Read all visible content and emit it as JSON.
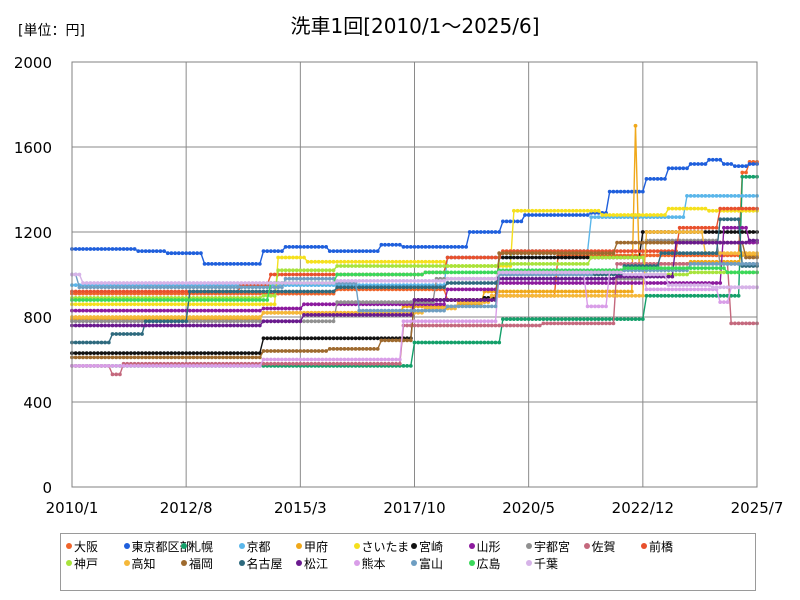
{
  "chart_data": {
    "type": "line",
    "title": "洗車1回[2010/1～2025/6]",
    "unit_label": "[単位：円]",
    "xlabel": "",
    "ylabel": "",
    "x_start": 2010.0,
    "x_end": 2025.5,
    "xlim": [
      2010.0,
      2025.5
    ],
    "ylim": [
      0,
      2000
    ],
    "yticks": [
      0,
      400,
      800,
      1200,
      1600,
      2000
    ],
    "xticks": [
      {
        "value": 2010.0,
        "label": "2010/1"
      },
      {
        "value": 2012.583,
        "label": "2012/8"
      },
      {
        "value": 2015.167,
        "label": "2015/3"
      },
      {
        "value": 2017.75,
        "label": "2017/10"
      },
      {
        "value": 2020.333,
        "label": "2020/5"
      },
      {
        "value": 2022.917,
        "label": "2022/12"
      },
      {
        "value": 2025.5,
        "label": "2025/7"
      }
    ],
    "grid": true,
    "legend_position": "bottom",
    "series": [
      {
        "name": "大阪",
        "color": "#f0642a",
        "steps": [
          [
            2010.0,
            910
          ],
          [
            2014.5,
            910
          ],
          [
            2016.0,
            930
          ],
          [
            2018.5,
            880
          ],
          [
            2019.5,
            900
          ],
          [
            2021.0,
            1090
          ],
          [
            2024.0,
            1090
          ],
          [
            2025.1,
            1480
          ],
          [
            2025.3,
            1530
          ]
        ]
      },
      {
        "name": "東京都区部",
        "color": "#1f5fdc",
        "steps": [
          [
            2010.0,
            1120
          ],
          [
            2011.5,
            1110
          ],
          [
            2012.1,
            1100
          ],
          [
            2013.0,
            1050
          ],
          [
            2014.0,
            1050
          ],
          [
            2014.3,
            1110
          ],
          [
            2014.8,
            1130
          ],
          [
            2015.8,
            1110
          ],
          [
            2017.0,
            1140
          ],
          [
            2017.5,
            1130
          ],
          [
            2019.0,
            1200
          ],
          [
            2019.7,
            1250
          ],
          [
            2020.2,
            1280
          ],
          [
            2021.7,
            1290
          ],
          [
            2022.1,
            1390
          ],
          [
            2023.0,
            1450
          ],
          [
            2023.5,
            1500
          ],
          [
            2024.0,
            1520
          ],
          [
            2024.4,
            1540
          ],
          [
            2024.7,
            1520
          ],
          [
            2025.0,
            1510
          ],
          [
            2025.3,
            1520
          ]
        ]
      },
      {
        "name": "札幌",
        "color": "#14a06a",
        "steps": [
          [
            2010.0,
            570
          ],
          [
            2016.9,
            570
          ],
          [
            2017.7,
            680
          ],
          [
            2019.7,
            790
          ],
          [
            2022.9,
            790
          ],
          [
            2023.0,
            900
          ],
          [
            2024.6,
            900
          ],
          [
            2025.1,
            1460
          ]
        ]
      },
      {
        "name": "京都",
        "color": "#5ab6ea",
        "steps": [
          [
            2010.0,
            950
          ],
          [
            2014.3,
            950
          ],
          [
            2016.5,
            950
          ],
          [
            2018.5,
            1080
          ],
          [
            2020.0,
            1110
          ],
          [
            2021.7,
            1270
          ],
          [
            2023.9,
            1370
          ]
        ]
      },
      {
        "name": "甲府",
        "color": "#f0a81a",
        "steps": [
          [
            2010.0,
            790
          ],
          [
            2013.7,
            790
          ],
          [
            2014.3,
            820
          ],
          [
            2017.5,
            850
          ],
          [
            2018.7,
            860
          ],
          [
            2019.3,
            920
          ],
          [
            2022.7,
            1700
          ],
          [
            2022.8,
            1050
          ],
          [
            2024.0,
            1060
          ],
          [
            2025.1,
            1090
          ]
        ]
      },
      {
        "name": "さいたま",
        "color": "#f5e01c",
        "steps": [
          [
            2010.0,
            860
          ],
          [
            2014.3,
            860
          ],
          [
            2014.6,
            1080
          ],
          [
            2015.3,
            1060
          ],
          [
            2018.5,
            1040
          ],
          [
            2020.0,
            1300
          ],
          [
            2022.0,
            1280
          ],
          [
            2023.5,
            1310
          ],
          [
            2024.4,
            1300
          ]
        ]
      },
      {
        "name": "宮崎",
        "color": "#111111",
        "steps": [
          [
            2010.0,
            630
          ],
          [
            2013.8,
            630
          ],
          [
            2014.3,
            700
          ],
          [
            2017.7,
            880
          ],
          [
            2019.3,
            890
          ],
          [
            2019.6,
            1080
          ],
          [
            2022.9,
            1200
          ],
          [
            2025.5,
            1200
          ]
        ]
      },
      {
        "name": "山形",
        "color": "#8c1a9e",
        "steps": [
          [
            2010.0,
            830
          ],
          [
            2014.3,
            840
          ],
          [
            2015.2,
            860
          ],
          [
            2018.5,
            930
          ],
          [
            2019.6,
            960
          ],
          [
            2024.7,
            1220
          ],
          [
            2025.3,
            1150
          ]
        ]
      },
      {
        "name": "宇都宮",
        "color": "#909090",
        "steps": [
          [
            2010.0,
            780
          ],
          [
            2014.3,
            780
          ],
          [
            2016.0,
            870
          ],
          [
            2018.2,
            980
          ],
          [
            2019.6,
            980
          ],
          [
            2023.0,
            1160
          ],
          [
            2024.6,
            1050
          ]
        ]
      },
      {
        "name": "佐賀",
        "color": "#c4687d",
        "steps": [
          [
            2010.0,
            570
          ],
          [
            2010.9,
            530
          ],
          [
            2011.1,
            580
          ],
          [
            2014.3,
            580
          ],
          [
            2014.5,
            580
          ],
          [
            2017.5,
            760
          ],
          [
            2020.6,
            770
          ],
          [
            2022.3,
            1050
          ],
          [
            2024.9,
            770
          ]
        ]
      },
      {
        "name": "前橋",
        "color": "#e8502d",
        "steps": [
          [
            2010.0,
            920
          ],
          [
            2013.8,
            950
          ],
          [
            2014.5,
            1000
          ],
          [
            2016.0,
            1000
          ],
          [
            2018.0,
            1010
          ],
          [
            2018.5,
            1080
          ],
          [
            2019.7,
            1110
          ],
          [
            2023.7,
            1220
          ],
          [
            2024.6,
            1310
          ]
        ]
      },
      {
        "name": "神戸",
        "color": "#a8e33c",
        "steps": [
          [
            2010.0,
            890
          ],
          [
            2014.3,
            900
          ],
          [
            2014.6,
            1020
          ],
          [
            2016.0,
            1040
          ],
          [
            2018.5,
            1040
          ],
          [
            2019.6,
            1050
          ],
          [
            2021.7,
            1080
          ],
          [
            2023.0,
            1000
          ],
          [
            2024.0,
            1010
          ]
        ]
      },
      {
        "name": "高知",
        "color": "#f5b83a",
        "steps": [
          [
            2010.0,
            800
          ],
          [
            2014.3,
            820
          ],
          [
            2016.0,
            820
          ],
          [
            2018.0,
            840
          ],
          [
            2018.7,
            870
          ],
          [
            2019.5,
            900
          ],
          [
            2023.0,
            1200
          ],
          [
            2024.3,
            1100
          ]
        ]
      },
      {
        "name": "福岡",
        "color": "#9e6a2e",
        "steps": [
          [
            2010.0,
            610
          ],
          [
            2014.3,
            640
          ],
          [
            2015.8,
            650
          ],
          [
            2017.0,
            690
          ],
          [
            2017.7,
            880
          ],
          [
            2019.6,
            1100
          ],
          [
            2022.3,
            1150
          ],
          [
            2025.2,
            1080
          ]
        ]
      },
      {
        "name": "名古屋",
        "color": "#2e6a7e",
        "steps": [
          [
            2010.0,
            680
          ],
          [
            2010.9,
            720
          ],
          [
            2011.6,
            780
          ],
          [
            2012.6,
            920
          ],
          [
            2014.3,
            920
          ],
          [
            2016.0,
            940
          ],
          [
            2018.5,
            960
          ],
          [
            2019.6,
            1000
          ],
          [
            2022.5,
            1040
          ],
          [
            2023.3,
            1100
          ],
          [
            2024.6,
            1260
          ],
          [
            2025.1,
            1040
          ]
        ]
      },
      {
        "name": "松江",
        "color": "#6a1a8e",
        "steps": [
          [
            2010.0,
            760
          ],
          [
            2014.3,
            780
          ],
          [
            2015.2,
            810
          ],
          [
            2017.7,
            880
          ],
          [
            2019.6,
            980
          ],
          [
            2022.3,
            990
          ],
          [
            2023.6,
            1150
          ],
          [
            2025.3,
            1160
          ]
        ]
      },
      {
        "name": "熊本",
        "color": "#d99ee8",
        "steps": [
          [
            2010.0,
            570
          ],
          [
            2014.3,
            600
          ],
          [
            2016.0,
            600
          ],
          [
            2017.5,
            780
          ],
          [
            2019.6,
            1000
          ],
          [
            2021.6,
            850
          ],
          [
            2022.1,
            1020
          ],
          [
            2023.0,
            930
          ],
          [
            2024.6,
            870
          ],
          [
            2024.9,
            940
          ]
        ]
      },
      {
        "name": "富山",
        "color": "#6e9ec2",
        "steps": [
          [
            2010.0,
            1000
          ],
          [
            2010.1,
            940
          ],
          [
            2014.3,
            940
          ],
          [
            2014.8,
            980
          ],
          [
            2016.0,
            960
          ],
          [
            2016.5,
            830
          ],
          [
            2018.5,
            850
          ],
          [
            2019.6,
            1000
          ],
          [
            2021.8,
            1020
          ],
          [
            2024.0,
            1050
          ]
        ]
      },
      {
        "name": "広島",
        "color": "#3ad85a",
        "steps": [
          [
            2010.0,
            880
          ],
          [
            2014.3,
            880
          ],
          [
            2014.5,
            960
          ],
          [
            2016.0,
            1000
          ],
          [
            2018.0,
            1010
          ],
          [
            2019.6,
            1020
          ],
          [
            2022.5,
            1030
          ],
          [
            2024.8,
            1010
          ]
        ]
      },
      {
        "name": "千葉",
        "color": "#d6b3e8",
        "steps": [
          [
            2010.0,
            1000
          ],
          [
            2010.2,
            960
          ],
          [
            2014.3,
            960
          ],
          [
            2016.0,
            970
          ],
          [
            2018.5,
            980
          ],
          [
            2019.6,
            1010
          ],
          [
            2022.5,
            1000
          ],
          [
            2023.5,
            950
          ],
          [
            2024.5,
            940
          ]
        ]
      }
    ]
  }
}
